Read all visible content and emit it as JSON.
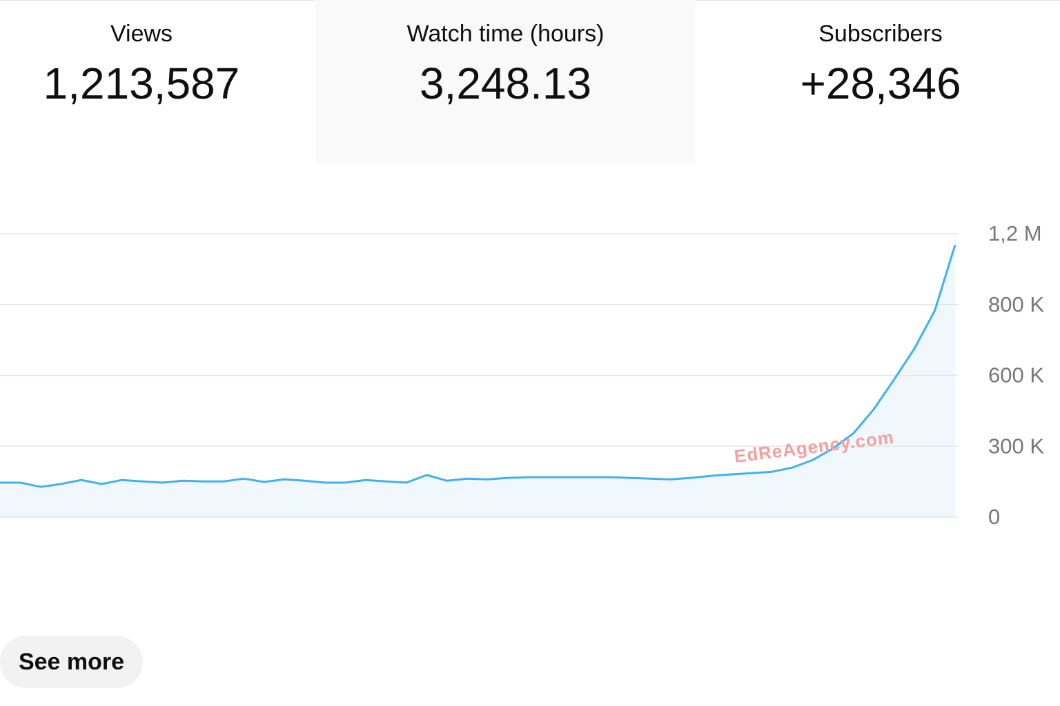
{
  "metrics": [
    {
      "label": "Views",
      "value": "1,213,587"
    },
    {
      "label": "Watch time (hours)",
      "value": "3,248.13"
    },
    {
      "label": "Subscribers",
      "value": "+28,346"
    }
  ],
  "chart_data": {
    "type": "area",
    "categories": [
      null,
      null,
      null,
      null,
      null,
      null,
      null,
      null,
      null,
      null,
      null,
      null,
      null,
      null,
      null,
      null,
      null,
      null,
      null,
      null,
      null,
      null,
      null,
      null,
      null,
      null,
      null,
      null,
      null,
      null,
      null,
      null,
      null,
      null,
      null,
      null,
      null,
      null,
      null,
      null,
      null,
      null,
      null,
      null,
      null,
      null,
      null,
      null
    ],
    "values": [
      146000,
      146000,
      128000,
      140000,
      157000,
      140000,
      157000,
      151000,
      146000,
      154000,
      151000,
      151000,
      163000,
      149000,
      160000,
      154000,
      146000,
      146000,
      157000,
      151000,
      146000,
      178000,
      154000,
      163000,
      160000,
      166000,
      169000,
      169000,
      169000,
      169000,
      169000,
      166000,
      163000,
      160000,
      166000,
      175000,
      181000,
      186000,
      192000,
      210000,
      242000,
      291000,
      355000,
      457000,
      583000,
      676000,
      783000,
      1137000
    ],
    "color": "#41b0f0",
    "ylim": [
      0,
      1200000
    ],
    "yticks": [
      {
        "value": 0,
        "label": "0"
      },
      {
        "value": 300000,
        "label": "300 K"
      },
      {
        "value": 600000,
        "label": "600 K"
      },
      {
        "value": 800000,
        "label": "800 K"
      },
      {
        "value": 1200000,
        "label": "1,2 M"
      }
    ],
    "grid": true
  },
  "watermark": "EdReAgency.com",
  "button": "See more"
}
